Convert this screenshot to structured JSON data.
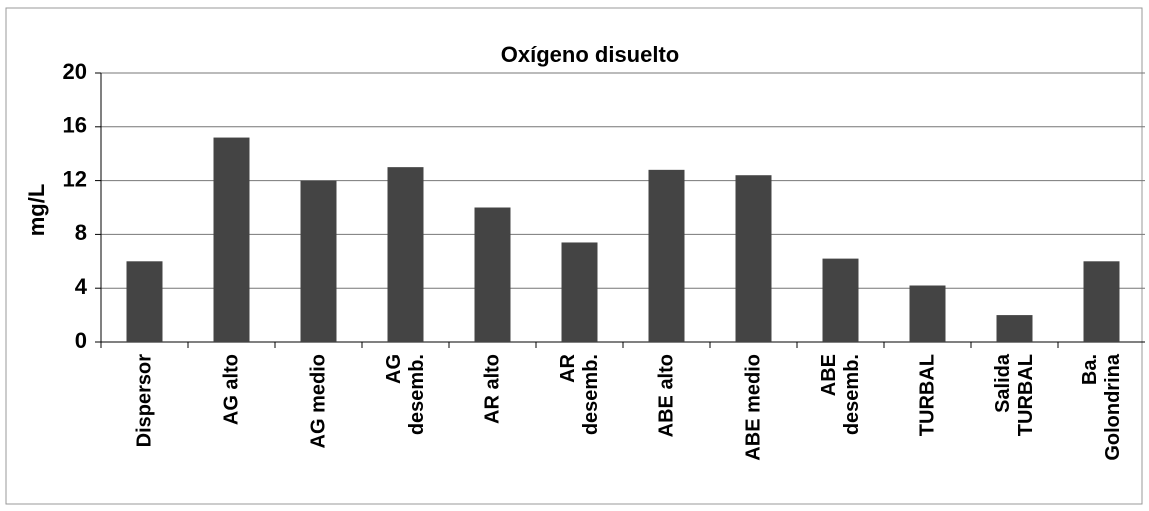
{
  "chart_data": {
    "type": "bar",
    "title": "Oxígeno disuelto",
    "y_label": "mg/L",
    "categories": [
      "Dispersor",
      "AG alto",
      "AG medio",
      "AG\ndesemb.",
      "AR alto",
      "AR\ndesemb.",
      "ABE alto",
      "ABE medio",
      "ABE\ndesemb.",
      "TURBAL",
      "Salida\nTURBAL",
      "Ba.\nGolondrina"
    ],
    "values": [
      6.0,
      15.2,
      12.0,
      13.0,
      10.0,
      7.4,
      12.8,
      12.4,
      6.2,
      4.2,
      2.0,
      6.0
    ],
    "color": "#444444",
    "ylim": [
      0,
      20
    ],
    "yticks": [
      0,
      4,
      8,
      12,
      16,
      20
    ],
    "grid": true
  }
}
